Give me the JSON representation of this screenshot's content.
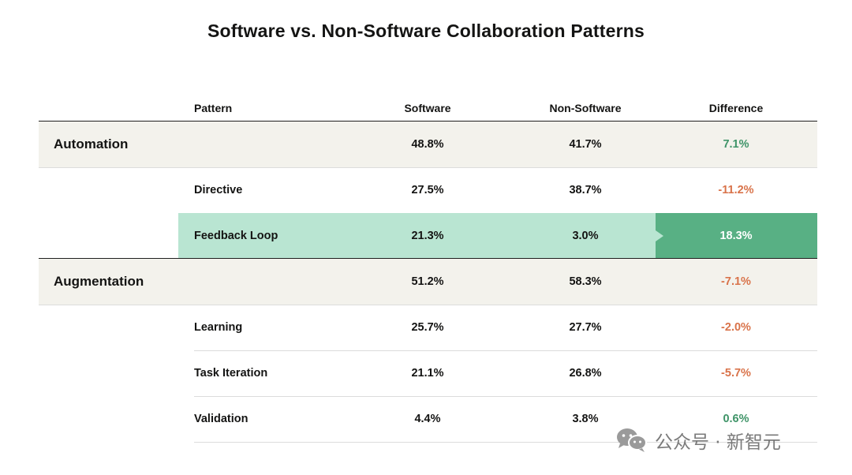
{
  "chart_data": {
    "type": "table",
    "title": "Software vs. Non-Software Collaboration Patterns",
    "columns": [
      "Pattern",
      "Software",
      "Non-Software",
      "Difference"
    ],
    "rows": [
      {
        "group": "Automation",
        "pattern": "",
        "software": "48.8%",
        "non_software": "41.7%",
        "difference": "7.1%",
        "sign": "pos",
        "kind": "group"
      },
      {
        "group": "",
        "pattern": "Directive",
        "software": "27.5%",
        "non_software": "38.7%",
        "difference": "-11.2%",
        "sign": "neg",
        "kind": "sub"
      },
      {
        "group": "",
        "pattern": "Feedback Loop",
        "software": "21.3%",
        "non_software": "3.0%",
        "difference": "18.3%",
        "sign": "pos",
        "kind": "highlight"
      },
      {
        "group": "Augmentation",
        "pattern": "",
        "software": "51.2%",
        "non_software": "58.3%",
        "difference": "-7.1%",
        "sign": "neg",
        "kind": "group"
      },
      {
        "group": "",
        "pattern": "Learning",
        "software": "25.7%",
        "non_software": "27.7%",
        "difference": "-2.0%",
        "sign": "neg",
        "kind": "sub"
      },
      {
        "group": "",
        "pattern": "Task Iteration",
        "software": "21.1%",
        "non_software": "26.8%",
        "difference": "-5.7%",
        "sign": "neg",
        "kind": "sub"
      },
      {
        "group": "",
        "pattern": "Validation",
        "software": "4.4%",
        "non_software": "3.8%",
        "difference": "0.6%",
        "sign": "pos",
        "kind": "sub"
      }
    ]
  },
  "colors": {
    "group_bg": "#f3f2ec",
    "highlight_bg": "#b9e5d2",
    "highlight_strong": "#58b084",
    "positive": "#3f9468",
    "negative": "#d9734a"
  },
  "watermark": {
    "icon": "wechat-icon",
    "text": "公众号 · 新智元"
  }
}
